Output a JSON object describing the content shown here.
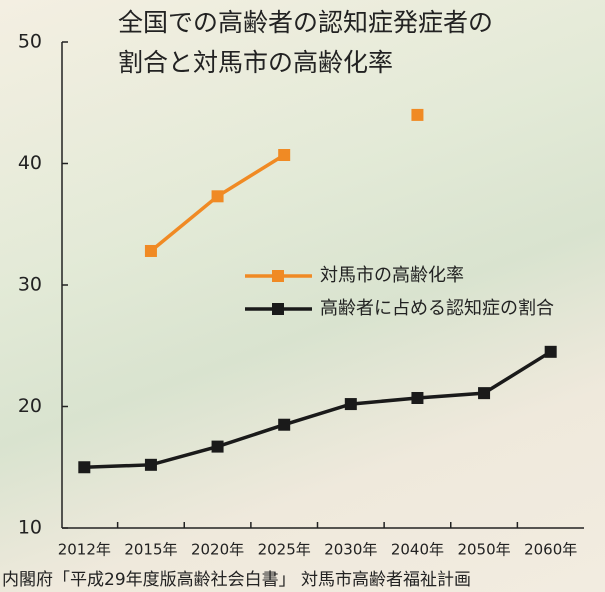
{
  "chart_data": {
    "type": "line",
    "title": [
      "全国での高齢者の認知症発症者の",
      "割合と対馬市の高齢化率"
    ],
    "categories": [
      "2012年",
      "2015年",
      "2020年",
      "2025年",
      "2030年",
      "2040年",
      "2050年",
      "2060年"
    ],
    "series": [
      {
        "name": "対馬市の高齢化率",
        "color": "#f08a24",
        "values": [
          null,
          32.8,
          37.3,
          40.7,
          null,
          44.0,
          null,
          null
        ]
      },
      {
        "name": "高齢者に占める認知症の割合",
        "color": "#1a1a1a",
        "values": [
          15.0,
          15.2,
          16.7,
          18.5,
          20.2,
          20.7,
          21.1,
          24.5
        ]
      }
    ],
    "ylim": [
      10,
      50
    ],
    "yticks": [
      10,
      20,
      30,
      40,
      50
    ],
    "source": "内閣府「平成29年度版高齢社会白書」 対馬市高齢者福祉計画"
  }
}
